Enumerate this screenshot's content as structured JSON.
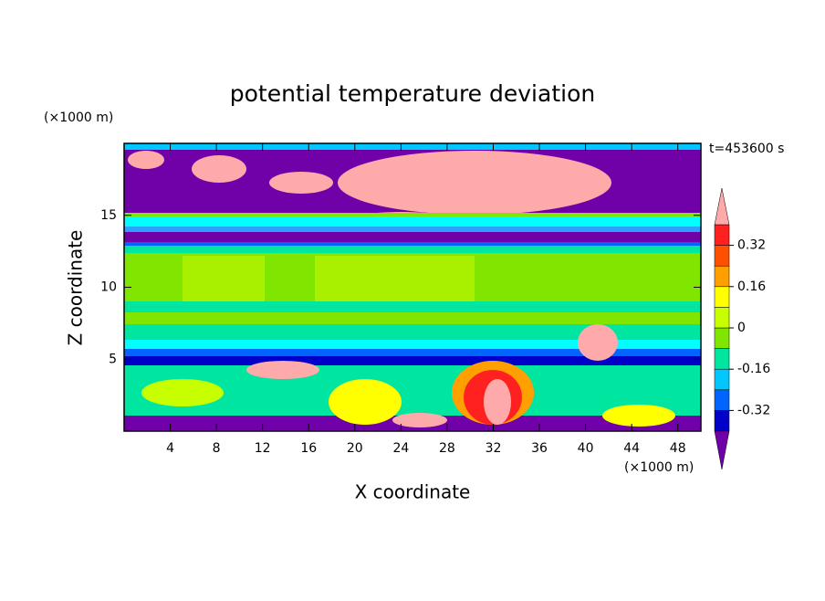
{
  "chart_data": {
    "type": "contour",
    "title": "potential temperature deviation",
    "x_label": "X coordinate",
    "y_label": "Z coordinate",
    "x_unit_label": "(×1000 m)",
    "y_unit_label": "(×1000 m)",
    "annotation": "t=453600 s",
    "xlim": [
      0,
      50
    ],
    "xticks": [
      4,
      8,
      12,
      16,
      20,
      24,
      28,
      32,
      36,
      40,
      44,
      48
    ],
    "ylim": [
      0,
      20
    ],
    "yticks": [
      5,
      10,
      15
    ],
    "levels": [
      -0.4,
      -0.32,
      -0.24,
      -0.16,
      -0.08,
      0,
      0.08,
      0.16,
      0.24,
      0.32,
      0.4
    ],
    "colors": [
      "#3a10b0",
      "#0000c8",
      "#0064ff",
      "#00c8ff",
      "#00e6a0",
      "#80e600",
      "#c8ff00",
      "#ffff00",
      "#ffa000",
      "#ff5000",
      "#ff2020"
    ],
    "under_color": "#7000a8",
    "over_color": "#ffaaaa",
    "cbar_ticks": [
      0.32,
      0.16,
      0,
      -0.16,
      -0.32
    ]
  }
}
